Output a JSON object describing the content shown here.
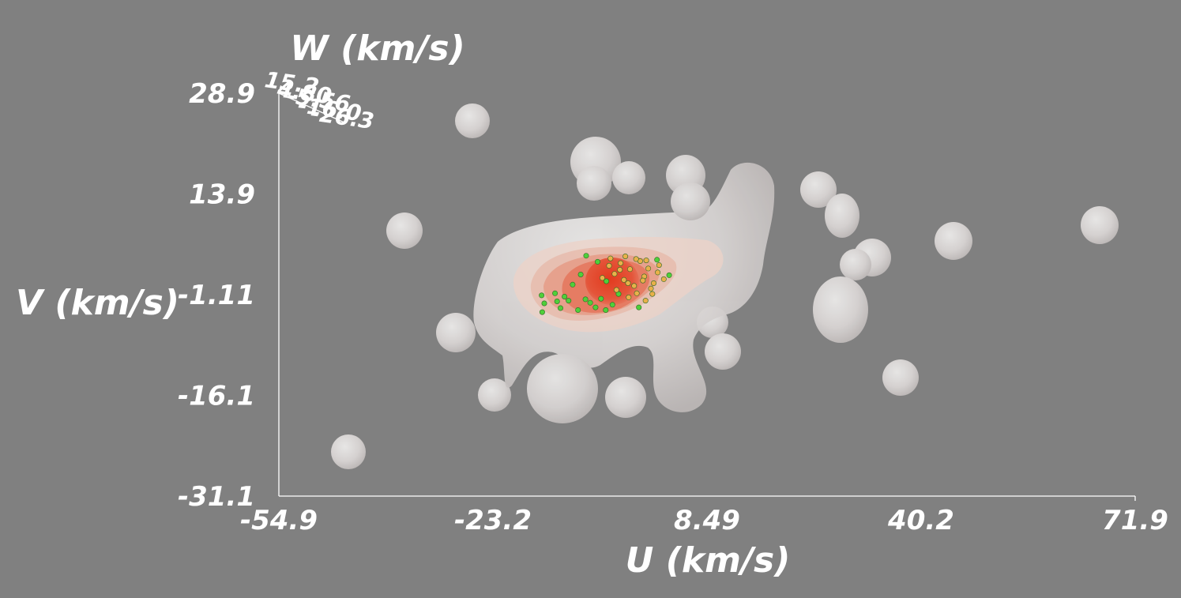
{
  "chart_data": {
    "type": "scatter",
    "view": "3d-volume-isosurface",
    "xlabel": "U (km/s)",
    "ylabel": "V (km/s)",
    "zlabel": "W (km/s)",
    "xlim": [
      -54.9,
      71.9
    ],
    "ylim": [
      -31.1,
      28.9
    ],
    "zlim": [
      -26.3,
      15.2
    ],
    "x_ticks": [
      "-54.9",
      "-23.2",
      "8.49",
      "40.2",
      "71.9"
    ],
    "y_ticks": [
      "-31.1",
      "-16.1",
      "-1.11",
      "13.9",
      "28.9"
    ],
    "z_ticks": [
      "15.2",
      "4.80",
      "-5.56",
      "-16.0",
      "-26.3"
    ],
    "grid": false,
    "colors": {
      "background": "#808080",
      "axes": "#ffffff",
      "outer_isosurface": "#dedad8",
      "core_isosurface": "#e8452a",
      "points_primary": "#4fcf3a",
      "points_secondary": "#e9b04a"
    },
    "isosurface_levels": [
      {
        "level": 1,
        "color": "#d6d1cf",
        "opacity": 0.9
      },
      {
        "level": 2,
        "color": "#ecd2c8",
        "opacity": 0.75
      },
      {
        "level": 3,
        "color": "#e6b3a3",
        "opacity": 0.6
      },
      {
        "level": 4,
        "color": "#e59079",
        "opacity": 0.6
      },
      {
        "level": 5,
        "color": "#e46c51",
        "opacity": 0.65
      },
      {
        "level": 6,
        "color": "#e2452b",
        "opacity": 0.8
      }
    ],
    "series": [
      {
        "color": "#4fcf3a",
        "points": [
          [
            -16.0,
            -1.2
          ],
          [
            -15.6,
            -2.4
          ],
          [
            -15.9,
            -3.7
          ],
          [
            -14.0,
            -0.9
          ],
          [
            -13.2,
            -3.1
          ],
          [
            -12.0,
            -2.0
          ],
          [
            -10.6,
            -3.4
          ],
          [
            -9.5,
            -1.8
          ],
          [
            -11.4,
            0.4
          ],
          [
            -8.0,
            -3.0
          ],
          [
            -7.2,
            -1.7
          ],
          [
            -6.5,
            -3.4
          ],
          [
            -9.4,
            4.7
          ],
          [
            -7.7,
            3.8
          ],
          [
            -10.2,
            1.9
          ],
          [
            -5.5,
            -2.6
          ],
          [
            -4.6,
            -1.0
          ],
          [
            -6.4,
            0.9
          ],
          [
            -13.7,
            -2.1
          ],
          [
            -8.8,
            -2.3
          ],
          [
            1.1,
            4.1
          ],
          [
            2.9,
            1.8
          ],
          [
            -1.6,
            -3.0
          ],
          [
            -12.6,
            -1.4
          ]
        ]
      },
      {
        "color": "#e9b04a",
        "points": [
          [
            -6.0,
            3.2
          ],
          [
            -5.2,
            2.0
          ],
          [
            -4.3,
            3.6
          ],
          [
            -3.8,
            1.1
          ],
          [
            -2.9,
            2.7
          ],
          [
            -2.3,
            0.2
          ],
          [
            -1.4,
            3.9
          ],
          [
            -0.8,
            1.6
          ],
          [
            -0.2,
            2.8
          ],
          [
            0.6,
            0.6
          ],
          [
            1.2,
            2.2
          ],
          [
            -4.9,
            -0.4
          ],
          [
            -3.1,
            -1.5
          ],
          [
            -1.9,
            -0.9
          ],
          [
            -0.6,
            -2.0
          ],
          [
            0.4,
            -1.0
          ],
          [
            1.4,
            3.3
          ],
          [
            2.1,
            1.2
          ],
          [
            -7.0,
            1.4
          ],
          [
            -5.8,
            4.3
          ],
          [
            -3.6,
            4.6
          ],
          [
            -2.0,
            4.2
          ],
          [
            -0.5,
            4.0
          ],
          [
            0.2,
            -0.2
          ],
          [
            -1.0,
            1.0
          ],
          [
            -3.2,
            0.6
          ],
          [
            -4.4,
            2.6
          ]
        ]
      }
    ]
  }
}
